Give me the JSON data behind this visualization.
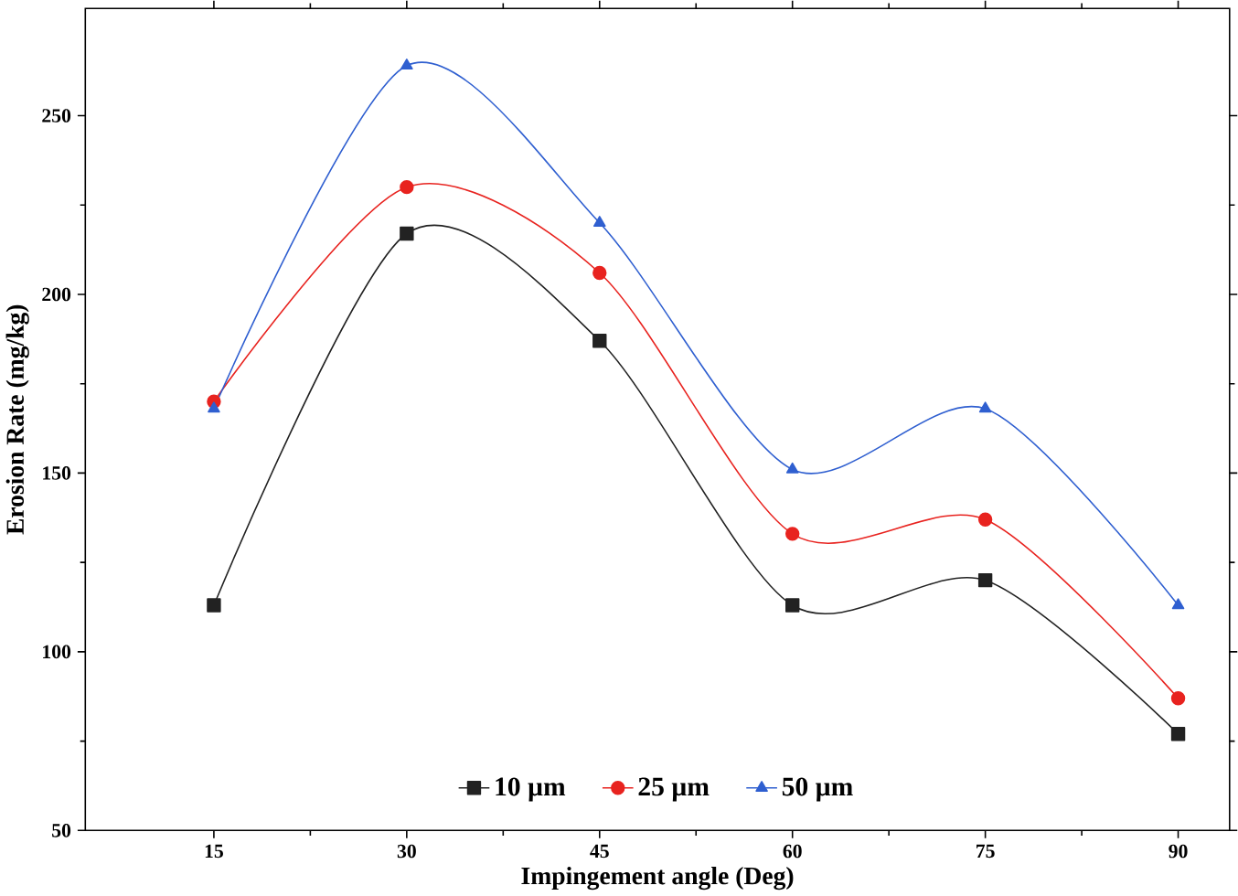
{
  "chart_data": {
    "type": "line",
    "xlabel": "Impingement angle (Deg)",
    "ylabel": "Erosion Rate (mg/kg)",
    "x": [
      15,
      30,
      45,
      60,
      75,
      90
    ],
    "series": [
      {
        "name": "10 µm",
        "color": "#222222",
        "marker": "square",
        "values": [
          113,
          217,
          187,
          113,
          120,
          77
        ]
      },
      {
        "name": "25 µm",
        "color": "#e8231f",
        "marker": "circle",
        "values": [
          170,
          230,
          206,
          133,
          137,
          87
        ]
      },
      {
        "name": "50 µm",
        "color": "#2f5fd0",
        "marker": "triangle",
        "values": [
          168,
          264,
          220,
          151,
          168,
          113
        ]
      }
    ],
    "xlim": [
      5,
      94
    ],
    "ylim": [
      50,
      280
    ],
    "xticks": [
      15,
      30,
      45,
      60,
      75,
      90
    ],
    "yticks": [
      50,
      100,
      150,
      200,
      250
    ],
    "grid": false,
    "legend": "bottom",
    "line_style": "solid"
  }
}
